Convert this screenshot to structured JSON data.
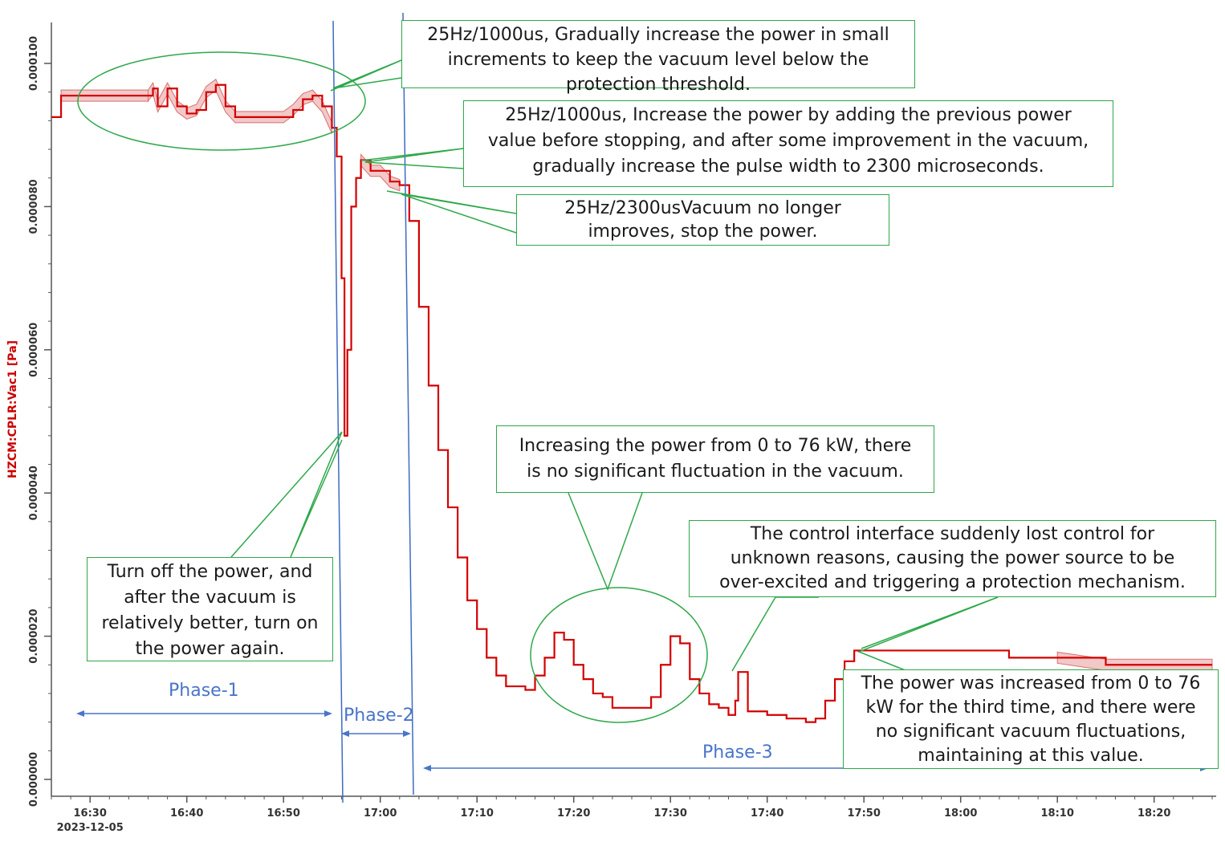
{
  "chart_data": {
    "type": "line",
    "ylabel": "HZCM:CPLR:Vac1 [Pa]",
    "date_label": "2023-12-05",
    "ylim": [
      0.0,
      0.000105
    ],
    "y_ticks": [
      "0.000000",
      "0.000020",
      "0.000040",
      "0.000060",
      "0.000080",
      "0.000100"
    ],
    "y_tick_values": [
      0.0,
      2e-05,
      4e-05,
      6e-05,
      8e-05,
      0.0001
    ],
    "x_ticks": [
      "16:30",
      "16:40",
      "16:50",
      "17:00",
      "17:10",
      "17:20",
      "17:30",
      "17:40",
      "17:50",
      "18:00",
      "18:10",
      "18:20"
    ],
    "x_range": [
      "16:26",
      "18:26"
    ],
    "grid": false,
    "series": [
      {
        "color": "#d40000",
        "x": [
          "16:26",
          "16:27",
          "16:36",
          "16:36.5",
          "16:37",
          "16:38",
          "16:39",
          "16:40",
          "16:41",
          "16:42",
          "16:43",
          "16:44",
          "16:45",
          "16:46",
          "16:47",
          "16:48",
          "16:49",
          "16:50",
          "16:51",
          "16:52",
          "16:53",
          "16:54",
          "16:55",
          "16:55.5",
          "16:56",
          "16:56.3",
          "16:56.6",
          "16:57",
          "16:57.5",
          "16:58",
          "16:59",
          "17:00",
          "17:01",
          "17:02",
          "17:03",
          "17:04",
          "17:05",
          "17:06",
          "17:07",
          "17:08",
          "17:09",
          "17:10",
          "17:11",
          "17:12",
          "17:13",
          "17:14",
          "17:15",
          "17:16",
          "17:17",
          "17:18",
          "17:19",
          "17:20",
          "17:21",
          "17:22",
          "17:23",
          "17:24",
          "17:25",
          "17:26",
          "17:27",
          "17:28",
          "17:29",
          "17:30",
          "17:31",
          "17:32",
          "17:33",
          "17:34",
          "17:35",
          "17:36",
          "17:36.7",
          "17:37",
          "17:38",
          "17:40",
          "17:42",
          "17:44",
          "17:45",
          "17:46",
          "17:47",
          "17:48",
          "17:49",
          "17:50",
          "17:55",
          "18:00",
          "18:05",
          "18:10",
          "18:15",
          "18:20",
          "18:26"
        ],
        "y": [
          9.25e-05,
          9.55e-05,
          9.55e-05,
          9.65e-05,
          9.4e-05,
          9.65e-05,
          9.4e-05,
          9.3e-05,
          9.35e-05,
          9.6e-05,
          9.7e-05,
          9.4e-05,
          9.25e-05,
          9.25e-05,
          9.25e-05,
          9.25e-05,
          9.25e-05,
          9.25e-05,
          9.35e-05,
          9.5e-05,
          9.55e-05,
          9.4e-05,
          9.1e-05,
          8.7e-05,
          7e-05,
          4.8e-05,
          6e-05,
          8e-05,
          8.4e-05,
          8.65e-05,
          8.5e-05,
          8.5e-05,
          8.35e-05,
          8.3e-05,
          7.8e-05,
          6.6e-05,
          5.5e-05,
          4.6e-05,
          3.8e-05,
          3.1e-05,
          2.5e-05,
          2.1e-05,
          1.7e-05,
          1.45e-05,
          1.3e-05,
          1.3e-05,
          1.25e-05,
          1.45e-05,
          1.7e-05,
          2.05e-05,
          1.95e-05,
          1.6e-05,
          1.4e-05,
          1.2e-05,
          1.15e-05,
          1e-05,
          1e-05,
          1e-05,
          1e-05,
          1.15e-05,
          1.6e-05,
          2e-05,
          1.9e-05,
          1.4e-05,
          1.2e-05,
          1.05e-05,
          1e-05,
          9e-06,
          1.1e-05,
          1.5e-05,
          9.5e-06,
          9e-06,
          8.5e-06,
          8e-06,
          8.5e-06,
          1.1e-05,
          1.4e-05,
          1.65e-05,
          1.8e-05,
          1.8e-05,
          1.8e-05,
          1.8e-05,
          1.7e-05,
          1.7e-05,
          1.6e-05,
          1.6e-05,
          1.6e-05
        ]
      }
    ],
    "band": {
      "color": "#e89a9a",
      "segments": [
        [
          "16:27",
          "16:36"
        ],
        [
          "16:36",
          "16:55"
        ],
        [
          "16:58",
          "17:02"
        ],
        [
          "18:10",
          "18:26"
        ]
      ]
    },
    "vertical_lines": [
      "16:56",
      "17:03"
    ],
    "phases": [
      {
        "label": "Phase-1",
        "from": "16:28",
        "to": "16:55"
      },
      {
        "label": "Phase-2",
        "from": "16:56",
        "to": "17:03"
      },
      {
        "label": "Phase-3",
        "from": "17:04",
        "to": "18:26"
      }
    ],
    "annotations": [
      {
        "id": "a1",
        "lines": [
          "25Hz/1000us,  Gradually increase the power in small",
          "increments to keep the vacuum level below the",
          "protection threshold."
        ]
      },
      {
        "id": "a2",
        "lines": [
          "25Hz/1000us,  Increase the power by adding the previous power",
          "value before stopping, and after some improvement in the vacuum,",
          "gradually increase the pulse width to 2300 microseconds."
        ]
      },
      {
        "id": "a3",
        "lines": [
          "25Hz/2300usVacuum  no longer",
          "improves, stop the power."
        ]
      },
      {
        "id": "a4",
        "lines": [
          "Turn off the power, and",
          "after the vacuum is",
          "relatively better, turn on",
          "the power again."
        ]
      },
      {
        "id": "a5",
        "lines": [
          "Increasing the power from 0 to 76 kW, there",
          "is no significant fluctuation in the vacuum."
        ]
      },
      {
        "id": "a6",
        "lines": [
          "The control interface suddenly lost control for",
          "unknown reasons, causing the power source to be",
          "over-excited and triggering a protection mechanism."
        ]
      },
      {
        "id": "a7",
        "lines": [
          "The power was increased from 0 to 76",
          "kW for the third time, and there were",
          "no significant vacuum fluctuations,",
          "maintaining at this value."
        ]
      }
    ]
  }
}
